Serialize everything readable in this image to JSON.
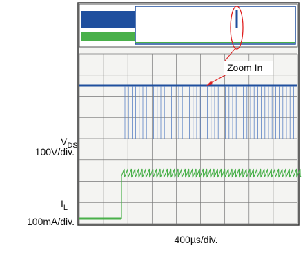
{
  "labels": {
    "zoom": "Zoom In",
    "vds": {
      "symbol": "V",
      "subscript": "DS",
      "scale": "100V/div."
    },
    "il": {
      "symbol": "I",
      "subscript": "L",
      "scale": "100mA/div."
    },
    "timebase": "400µs/div."
  }
}
